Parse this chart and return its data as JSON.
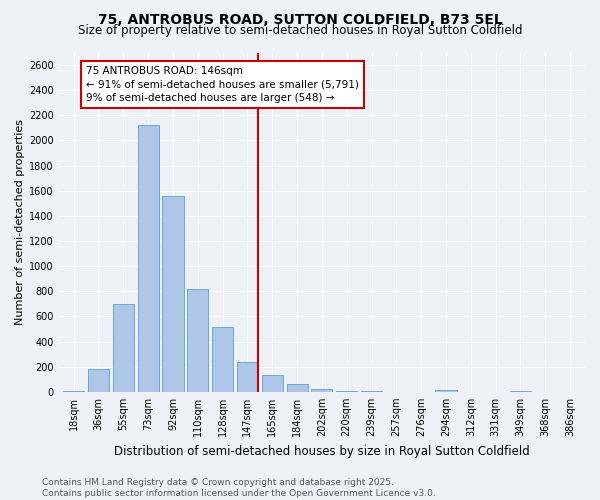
{
  "title": "75, ANTROBUS ROAD, SUTTON COLDFIELD, B73 5EL",
  "subtitle": "Size of property relative to semi-detached houses in Royal Sutton Coldfield",
  "xlabel": "Distribution of semi-detached houses by size in Royal Sutton Coldfield",
  "ylabel": "Number of semi-detached properties",
  "categories": [
    "18sqm",
    "36sqm",
    "55sqm",
    "73sqm",
    "92sqm",
    "110sqm",
    "128sqm",
    "147sqm",
    "165sqm",
    "184sqm",
    "202sqm",
    "220sqm",
    "239sqm",
    "257sqm",
    "276sqm",
    "294sqm",
    "312sqm",
    "331sqm",
    "349sqm",
    "368sqm",
    "386sqm"
  ],
  "values": [
    10,
    185,
    695,
    2120,
    1555,
    820,
    515,
    240,
    130,
    65,
    25,
    10,
    5,
    0,
    0,
    15,
    0,
    0,
    5,
    0,
    0
  ],
  "bar_color": "#aec6e8",
  "bar_edge_color": "#5a9fd4",
  "vline_x_index": 7,
  "vline_color": "#cc0000",
  "annotation_line1": "75 ANTROBUS ROAD: 146sqm",
  "annotation_line2": "← 91% of semi-detached houses are smaller (5,791)",
  "annotation_line3": "9% of semi-detached houses are larger (548) →",
  "annotation_box_color": "#ffffff",
  "annotation_box_edge_color": "#cc0000",
  "ylim": [
    0,
    2700
  ],
  "yticks": [
    0,
    200,
    400,
    600,
    800,
    1000,
    1200,
    1400,
    1600,
    1800,
    2000,
    2200,
    2400,
    2600
  ],
  "background_color": "#eef2f8",
  "grid_color": "#ffffff",
  "footnote": "Contains HM Land Registry data © Crown copyright and database right 2025.\nContains public sector information licensed under the Open Government Licence v3.0.",
  "title_fontsize": 10,
  "subtitle_fontsize": 8.5,
  "xlabel_fontsize": 8.5,
  "ylabel_fontsize": 8,
  "tick_fontsize": 7,
  "footnote_fontsize": 6.5,
  "annotation_fontsize": 7.5
}
